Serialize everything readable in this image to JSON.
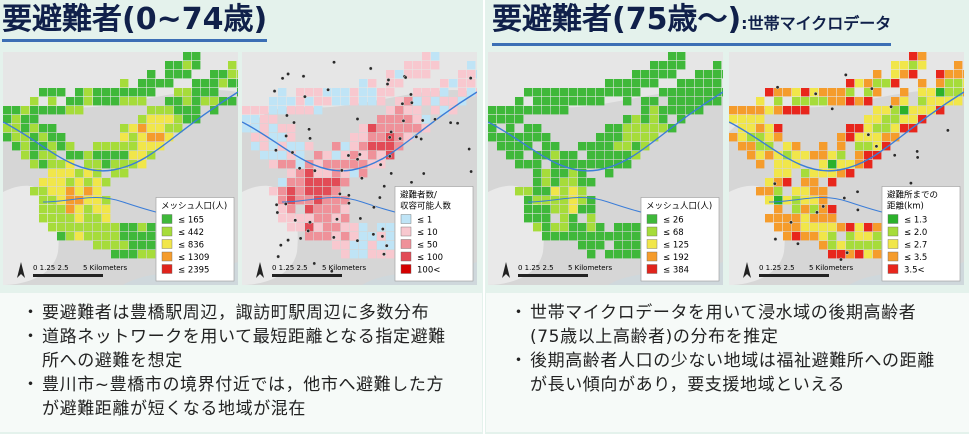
{
  "left": {
    "title": "要避難者(0~74歳)",
    "maps": [
      {
        "legend": {
          "title": [
            "メッシュ人口(人)"
          ],
          "items": [
            "≤ 165",
            "≤ 442",
            "≤ 836",
            "≤ 1309",
            "≤ 2395"
          ]
        },
        "scale": {
          "ticks": "0 1.25 2.5",
          "unit": "5 Kilometers"
        }
      },
      {
        "legend": {
          "title": [
            "避難者数/",
            "収容可能人数"
          ],
          "items": [
            "≤ 1",
            "≤ 10",
            "≤ 50",
            "≤ 100",
            "100<"
          ]
        },
        "scale": {
          "ticks": "0 1.25 2.5",
          "unit": "5 Kilometers"
        }
      }
    ],
    "bullets": [
      "要避難者は豊橋駅周辺，諏訪町駅周辺に多数分布",
      "道路ネットワークを用いて最短距離となる指定避難所への避難を想定",
      "豊川市~豊橋市の境界付近では，他市へ避難した方が避難距離が短くなる地域が混在"
    ]
  },
  "right": {
    "title": "要避難者(75歳～)",
    "subtitle": ":世帯マイクロデータ",
    "maps": [
      {
        "legend": {
          "title": [
            "メッシュ人口(人)"
          ],
          "items": [
            "≤ 26",
            "≤ 68",
            "≤ 125",
            "≤ 192",
            "≤ 384"
          ]
        },
        "scale": {
          "ticks": "0 1.25 2.5",
          "unit": "5 Kilometers"
        }
      },
      {
        "legend": {
          "title": [
            "避難所までの",
            "距離(km)"
          ],
          "items": [
            "≤ 1.3",
            "≤ 2.0",
            "≤ 2.7",
            "≤ 3.5",
            "3.5<"
          ]
        },
        "scale": {
          "ticks": "0 1.25 2.5",
          "unit": "5 Kilometers"
        }
      }
    ],
    "bullets": [
      "世帯マイクロデータを用いて浸水域の後期高齢者(75歳以上高齢者)の分布を推定",
      "後期高齢者人口の少ない地域は福祉避難所への距離が長い傾向があり，要支援地域といえる"
    ]
  }
}
